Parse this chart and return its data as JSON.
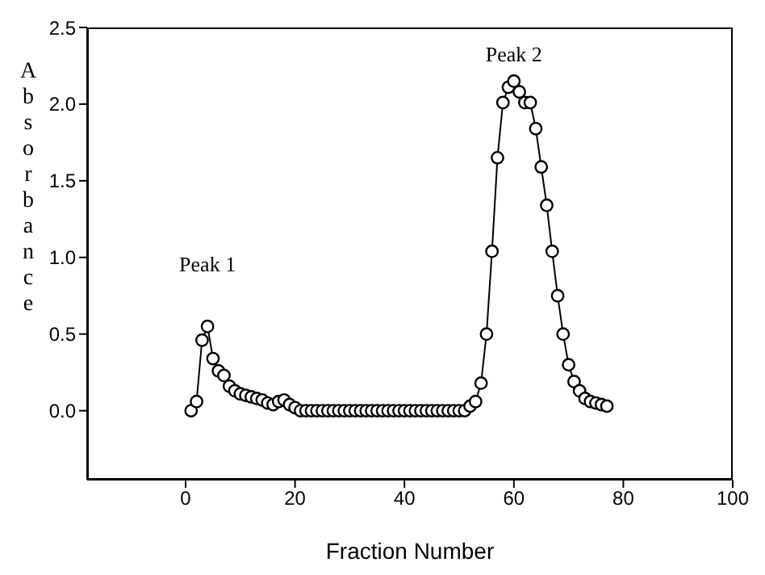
{
  "chart_data": {
    "type": "line",
    "xlabel": "Fraction Number",
    "ylabel": "Absorbance",
    "x": [
      1,
      2,
      3,
      4,
      5,
      6,
      7,
      8,
      9,
      10,
      11,
      12,
      13,
      14,
      15,
      16,
      17,
      18,
      19,
      20,
      21,
      22,
      23,
      24,
      25,
      26,
      27,
      28,
      29,
      30,
      31,
      32,
      33,
      34,
      35,
      36,
      37,
      38,
      39,
      40,
      41,
      42,
      43,
      44,
      45,
      46,
      47,
      48,
      49,
      50,
      51,
      52,
      53,
      54,
      55,
      56,
      57,
      58,
      59,
      60,
      61,
      62,
      63,
      64,
      65,
      66,
      67,
      68,
      69,
      70,
      71,
      72,
      73,
      74,
      75,
      76,
      77
    ],
    "series": [
      {
        "color": "#000000",
        "values": [
          0,
          0.06,
          0.46,
          0.55,
          0.34,
          0.26,
          0.23,
          0.16,
          0.13,
          0.11,
          0.1,
          0.09,
          0.08,
          0.07,
          0.05,
          0.04,
          0.06,
          0.07,
          0.04,
          0.02,
          0,
          0,
          0,
          0,
          0,
          0,
          0,
          0,
          0,
          0,
          0,
          0,
          0,
          0,
          0,
          0,
          0,
          0,
          0,
          0,
          0,
          0,
          0,
          0,
          0,
          0,
          0,
          0,
          0,
          0,
          0,
          0.03,
          0.06,
          0.18,
          0.5,
          1.04,
          1.65,
          2.01,
          2.11,
          2.15,
          2.08,
          2.01,
          2.01,
          1.84,
          1.59,
          1.34,
          1.04,
          0.75,
          0.5,
          0.3,
          0.19,
          0.13,
          0.08,
          0.06,
          0.05,
          0.04,
          0.03
        ]
      }
    ],
    "xlim": [
      -18,
      100
    ],
    "xticks": [
      0,
      20,
      40,
      60,
      80,
      100
    ],
    "ylim": [
      -0.45,
      2.5
    ],
    "yticks": [
      {
        "value": 0,
        "label": "0.0"
      },
      {
        "value": 0.5,
        "label": "0.5"
      },
      {
        "value": 1,
        "label": "1.0"
      },
      {
        "value": 1.5,
        "label": "1.5"
      },
      {
        "value": 2,
        "label": "2.0"
      },
      {
        "value": 2.5,
        "label": "2.5"
      }
    ],
    "annotations": [
      {
        "text": "Peak 1",
        "x": 4,
        "y": 0.55
      },
      {
        "text": "Peak 2",
        "x": 60,
        "y": 2.15
      }
    ],
    "marker": "circle",
    "grid": false,
    "legend": false
  }
}
